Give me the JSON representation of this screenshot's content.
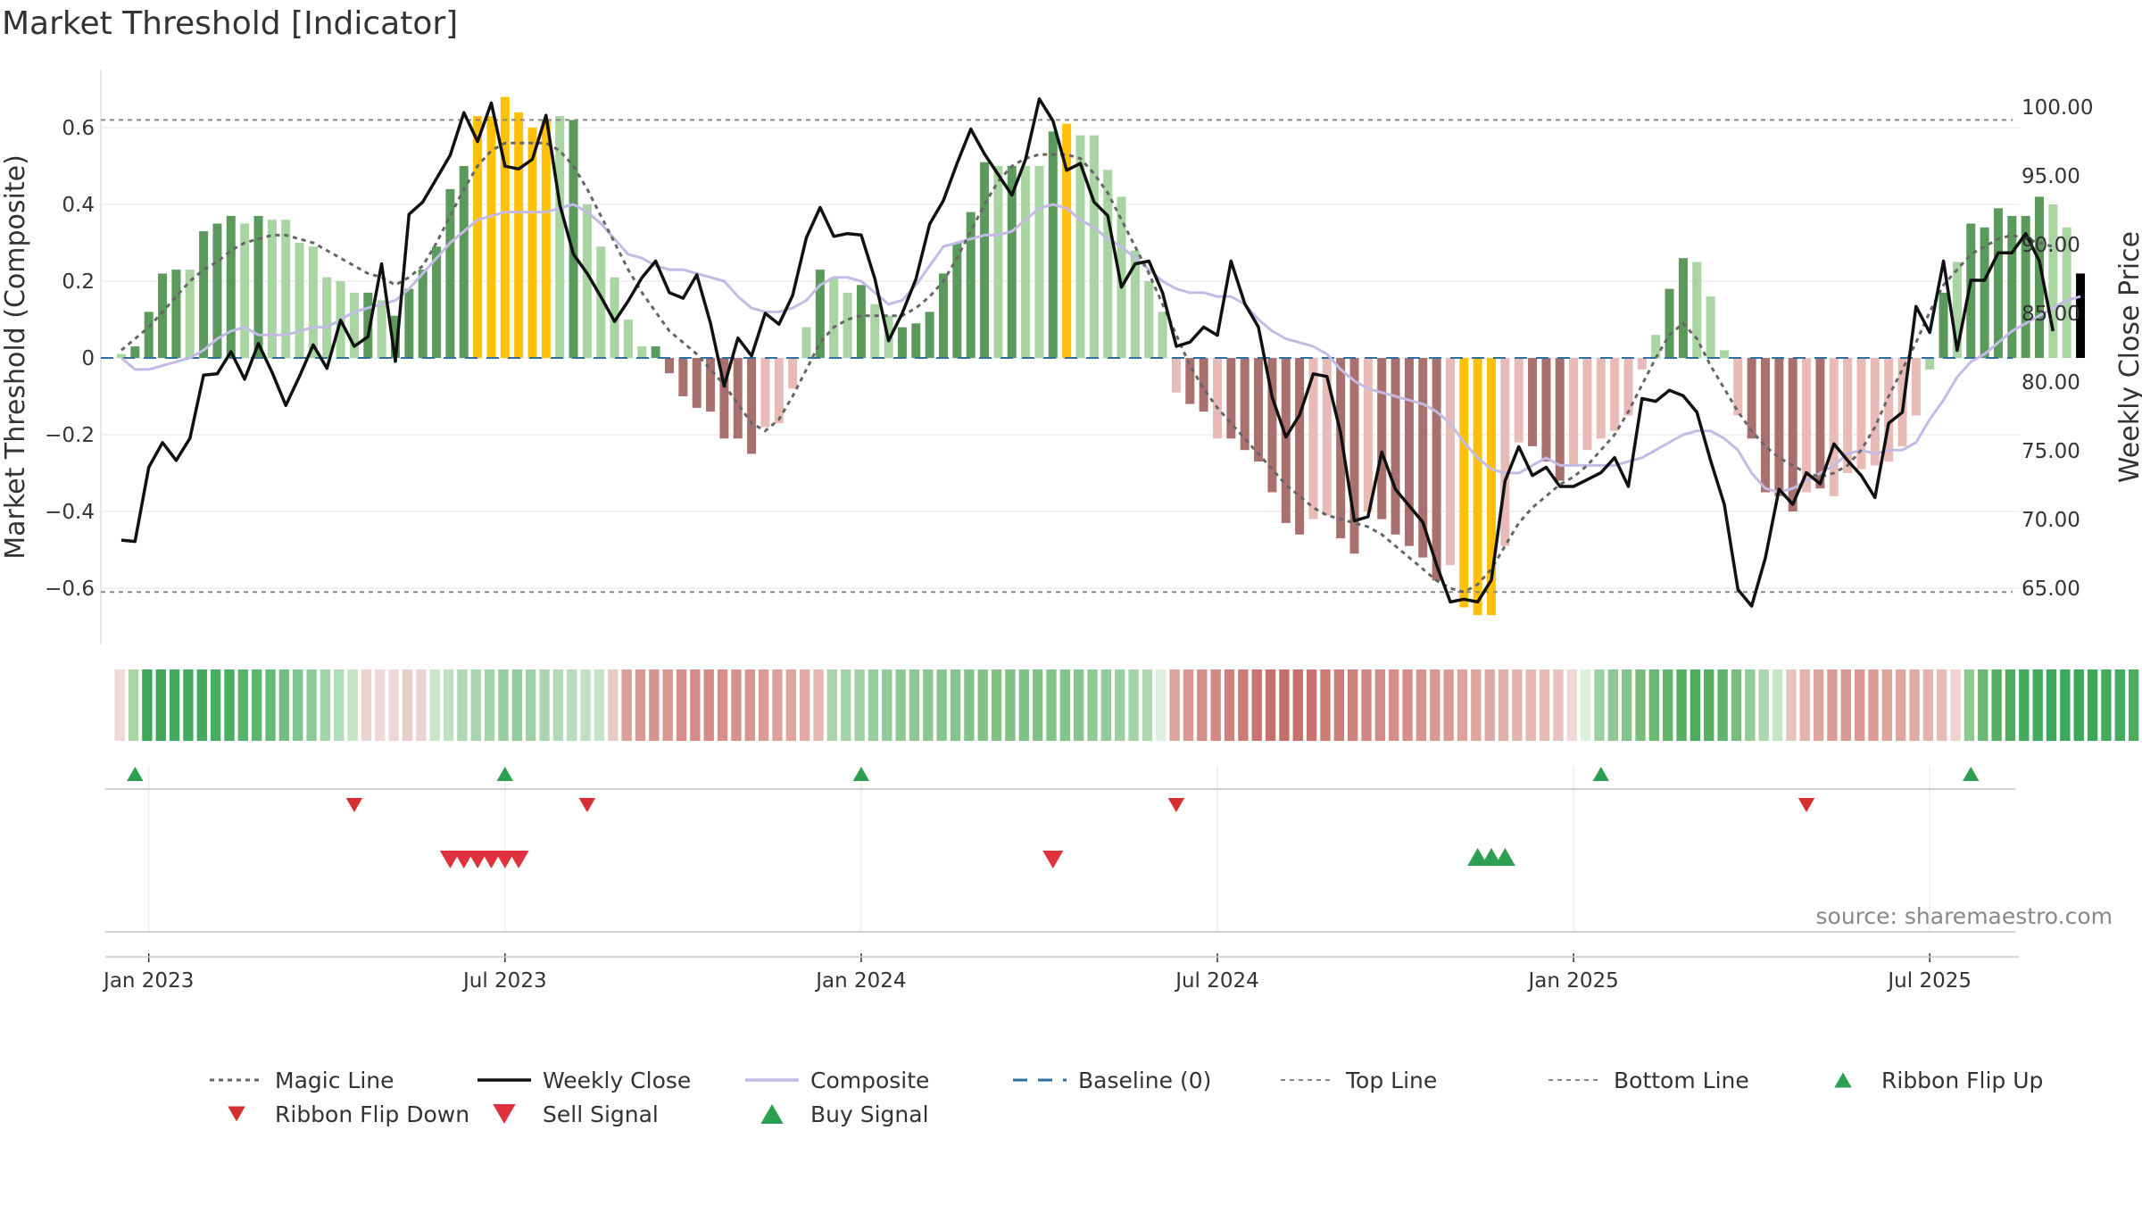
{
  "chart_data": {
    "type": "bar",
    "title": "Market Threshold [Indicator]",
    "ylabel": "Market Threshold (Composite)",
    "ylabel_right": "Weekly Close Price",
    "source": "source: sharemaestro.com",
    "ylim": [
      -0.75,
      0.75
    ],
    "ylim_right": [
      59.5,
      103.2
    ],
    "y_ticks": [
      {
        "v": 0.6,
        "label": "0.6"
      },
      {
        "v": 0.4,
        "label": "0.4"
      },
      {
        "v": 0.2,
        "label": "0.2"
      },
      {
        "v": 0,
        "label": "0"
      },
      {
        "v": -0.2,
        "label": "−0.2"
      },
      {
        "v": -0.4,
        "label": "−0.4"
      },
      {
        "v": -0.6,
        "label": "−0.6"
      }
    ],
    "y2_ticks": [
      {
        "v": 100,
        "label": "100.00"
      },
      {
        "v": 95,
        "label": "95.00"
      },
      {
        "v": 90,
        "label": "90.00"
      },
      {
        "v": 85,
        "label": "85.00"
      },
      {
        "v": 80,
        "label": "80.00"
      },
      {
        "v": 75,
        "label": "75.00"
      },
      {
        "v": 70,
        "label": "70.00"
      },
      {
        "v": 65,
        "label": "65.00"
      }
    ],
    "x_ticks": [
      {
        "i": 2,
        "label": "Jan 2023"
      },
      {
        "i": 28,
        "label": "Jul 2023"
      },
      {
        "i": 54,
        "label": "Jan 2024"
      },
      {
        "i": 80,
        "label": "Jul 2024"
      },
      {
        "i": 106,
        "label": "Jan 2025"
      },
      {
        "i": 132,
        "label": "Jul 2025"
      }
    ],
    "top_line": 0.62,
    "bottom_line": -0.61,
    "composite_values": [
      0.01,
      0.03,
      0.12,
      0.22,
      0.23,
      0.23,
      0.33,
      0.35,
      0.37,
      0.35,
      0.37,
      0.36,
      0.36,
      0.3,
      0.29,
      0.21,
      0.2,
      0.17,
      0.17,
      0.15,
      0.11,
      0.18,
      0.23,
      0.29,
      0.44,
      0.5,
      0.63,
      0.63,
      0.68,
      0.64,
      0.6,
      0.62,
      0.63,
      0.62,
      0.4,
      0.29,
      0.21,
      0.1,
      0.03,
      0.03,
      -0.04,
      -0.1,
      -0.13,
      -0.14,
      -0.21,
      -0.21,
      -0.25,
      -0.18,
      -0.17,
      -0.08,
      0.08,
      0.23,
      0.21,
      0.17,
      0.19,
      0.14,
      0.11,
      0.08,
      0.09,
      0.12,
      0.22,
      0.3,
      0.38,
      0.51,
      0.5,
      0.5,
      0.5,
      0.5,
      0.59,
      0.61,
      0.58,
      0.58,
      0.49,
      0.42,
      0.28,
      0.2,
      0.12,
      -0.09,
      -0.12,
      -0.14,
      -0.21,
      -0.21,
      -0.24,
      -0.27,
      -0.35,
      -0.43,
      -0.46,
      -0.42,
      -0.41,
      -0.47,
      -0.51,
      -0.4,
      -0.42,
      -0.46,
      -0.49,
      -0.52,
      -0.58,
      -0.54,
      -0.65,
      -0.67,
      -0.67,
      -0.49,
      -0.22,
      -0.23,
      -0.27,
      -0.32,
      -0.28,
      -0.24,
      -0.21,
      -0.19,
      -0.15,
      -0.03,
      0.06,
      0.18,
      0.26,
      0.25,
      0.16,
      0.02,
      -0.15,
      -0.21,
      -0.35,
      -0.36,
      -0.4,
      -0.35,
      -0.34,
      -0.36,
      -0.3,
      -0.29,
      -0.28,
      -0.27,
      -0.23,
      -0.15,
      -0.03,
      0.17,
      0.25,
      0.35,
      0.34,
      0.39,
      0.37,
      0.37,
      0.42,
      0.4,
      0.34,
      0.22
    ],
    "composite_colors": [
      "#a8d5a2",
      "#5b9a5b",
      "#5b9a5b",
      "#5b9a5b",
      "#5b9a5b",
      "#a8d5a2",
      "#5b9a5b",
      "#5b9a5b",
      "#5b9a5b",
      "#a8d5a2",
      "#5b9a5b",
      "#a8d5a2",
      "#a8d5a2",
      "#a8d5a2",
      "#a8d5a2",
      "#a8d5a2",
      "#a8d5a2",
      "#a8d5a2",
      "#5b9a5b",
      "#a8d5a2",
      "#5b9a5b",
      "#5b9a5b",
      "#5b9a5b",
      "#5b9a5b",
      "#5b9a5b",
      "#5b9a5b",
      "#ffc107",
      "#ffc107",
      "#ffc107",
      "#ffc107",
      "#ffc107",
      "#ffc107",
      "#a8d5a2",
      "#5b9a5b",
      "#a8d5a2",
      "#a8d5a2",
      "#a8d5a2",
      "#a8d5a2",
      "#a8d5a2",
      "#5b9a5b",
      "#a9716e",
      "#a9716e",
      "#a9716e",
      "#a9716e",
      "#a9716e",
      "#a9716e",
      "#a9716e",
      "#e9bbb6",
      "#e9bbb6",
      "#e9bbb6",
      "#a8d5a2",
      "#5b9a5b",
      "#a8d5a2",
      "#a8d5a2",
      "#5b9a5b",
      "#a8d5a2",
      "#a8d5a2",
      "#5b9a5b",
      "#5b9a5b",
      "#5b9a5b",
      "#5b9a5b",
      "#5b9a5b",
      "#5b9a5b",
      "#5b9a5b",
      "#a8d5a2",
      "#5b9a5b",
      "#a8d5a2",
      "#a8d5a2",
      "#5b9a5b",
      "#ffc107",
      "#a8d5a2",
      "#a8d5a2",
      "#a8d5a2",
      "#a8d5a2",
      "#a8d5a2",
      "#a8d5a2",
      "#a8d5a2",
      "#e9bbb6",
      "#a9716e",
      "#a9716e",
      "#e9bbb6",
      "#a9716e",
      "#a9716e",
      "#a9716e",
      "#a9716e",
      "#a9716e",
      "#a9716e",
      "#e9bbb6",
      "#e9bbb6",
      "#a9716e",
      "#a9716e",
      "#e9bbb6",
      "#a9716e",
      "#a9716e",
      "#a9716e",
      "#a9716e",
      "#a9716e",
      "#e9bbb6",
      "#ffc107",
      "#ffc107",
      "#ffc107",
      "#e9bbb6",
      "#e9bbb6",
      "#a9716e",
      "#a9716e",
      "#a9716e",
      "#e9bbb6",
      "#e9bbb6",
      "#e9bbb6",
      "#e9bbb6",
      "#e9bbb6",
      "#e9bbb6",
      "#a8d5a2",
      "#5b9a5b",
      "#5b9a5b",
      "#a8d5a2",
      "#a8d5a2",
      "#a8d5a2",
      "#e9bbb6",
      "#a9716e",
      "#a9716e",
      "#a9716e",
      "#a9716e",
      "#e9bbb6",
      "#a9716e",
      "#e9bbb6",
      "#e9bbb6",
      "#e9bbb6",
      "#e9bbb6",
      "#e9bbb6",
      "#e9bbb6",
      "#e9bbb6",
      "#a8d5a2",
      "#5b9a5b",
      "#a8d5a2",
      "#5b9a5b",
      "#5b9a5b",
      "#5b9a5b",
      "#5b9a5b",
      "#5b9a5b",
      "#5b9a5b",
      "#a8d5a2",
      "#a8d5a2"
    ],
    "weekly_close": [
      68.5,
      68.4,
      73.8,
      75.6,
      74.3,
      75.9,
      80.5,
      80.6,
      82.2,
      80.2,
      82.8,
      80.7,
      78.3,
      80.4,
      82.7,
      81.0,
      84.5,
      82.6,
      83.3,
      88.6,
      81.5,
      92.2,
      93.1,
      94.8,
      96.5,
      99.6,
      97.5,
      100.3,
      95.7,
      95.5,
      96.2,
      99.4,
      92.9,
      89.3,
      87.9,
      86.2,
      84.4,
      85.9,
      87.6,
      88.8,
      86.5,
      86.1,
      87.8,
      84.3,
      79.7,
      83.2,
      81.9,
      85.0,
      84.2,
      86.3,
      90.5,
      92.7,
      90.6,
      90.8,
      90.7,
      87.5,
      83.0,
      85.0,
      87.5,
      91.5,
      93.2,
      95.9,
      98.4,
      96.6,
      95.1,
      93.6,
      96.2,
      100.6,
      99.0,
      95.4,
      95.9,
      93.1,
      92.1,
      86.9,
      88.6,
      88.8,
      86.5,
      82.6,
      82.9,
      84.0,
      83.4,
      88.8,
      85.7,
      84.0,
      78.9,
      76.0,
      77.6,
      80.6,
      80.4,
      76.3,
      69.9,
      70.2,
      74.9,
      72.2,
      71.0,
      69.8,
      66.7,
      64.0,
      64.2,
      64.0,
      65.6,
      72.8,
      75.3,
      73.2,
      73.8,
      72.4,
      72.4,
      72.9,
      73.4,
      74.5,
      72.4,
      78.8,
      78.6,
      79.4,
      79.0,
      77.8,
      74.3,
      71.1,
      64.9,
      63.7,
      67.2,
      72.2,
      71.1,
      73.4,
      72.6,
      75.5,
      74.3,
      73.2,
      71.6,
      77.0,
      77.8,
      85.5,
      83.6,
      88.8,
      82.3,
      87.4,
      87.4,
      89.4,
      89.4,
      90.8,
      88.8,
      83.7
    ],
    "composite_line": [
      0,
      -0.03,
      -0.03,
      -0.02,
      -0.01,
      0,
      0.02,
      0.05,
      0.07,
      0.08,
      0.06,
      0.06,
      0.06,
      0.07,
      0.08,
      0.08,
      0.1,
      0.12,
      0.13,
      0.14,
      0.15,
      0.18,
      0.22,
      0.26,
      0.3,
      0.33,
      0.36,
      0.37,
      0.38,
      0.38,
      0.38,
      0.38,
      0.39,
      0.4,
      0.38,
      0.35,
      0.31,
      0.27,
      0.26,
      0.24,
      0.23,
      0.23,
      0.22,
      0.21,
      0.2,
      0.16,
      0.13,
      0.12,
      0.12,
      0.13,
      0.15,
      0.19,
      0.21,
      0.21,
      0.2,
      0.17,
      0.14,
      0.15,
      0.19,
      0.24,
      0.29,
      0.3,
      0.31,
      0.32,
      0.32,
      0.33,
      0.36,
      0.39,
      0.4,
      0.39,
      0.36,
      0.34,
      0.31,
      0.29,
      0.26,
      0.23,
      0.2,
      0.18,
      0.17,
      0.17,
      0.16,
      0.16,
      0.14,
      0.1,
      0.07,
      0.05,
      0.04,
      0.03,
      0.01,
      -0.03,
      -0.06,
      -0.08,
      -0.09,
      -0.1,
      -0.11,
      -0.12,
      -0.14,
      -0.17,
      -0.22,
      -0.26,
      -0.29,
      -0.3,
      -0.3,
      -0.28,
      -0.26,
      -0.28,
      -0.28,
      -0.28,
      -0.28,
      -0.28,
      -0.27,
      -0.26,
      -0.24,
      -0.22,
      -0.2,
      -0.19,
      -0.19,
      -0.21,
      -0.24,
      -0.3,
      -0.34,
      -0.35,
      -0.34,
      -0.32,
      -0.3,
      -0.28,
      -0.25,
      -0.24,
      -0.25,
      -0.24,
      -0.24,
      -0.22,
      -0.16,
      -0.11,
      -0.05,
      -0.01,
      0.01,
      0.04,
      0.07,
      0.09,
      0.11,
      0.13,
      0.15,
      0.16
    ],
    "magic_line": [
      0.02,
      0.05,
      0.08,
      0.12,
      0.16,
      0.2,
      0.23,
      0.25,
      0.28,
      0.3,
      0.31,
      0.32,
      0.32,
      0.31,
      0.3,
      0.28,
      0.26,
      0.24,
      0.22,
      0.21,
      0.19,
      0.21,
      0.24,
      0.3,
      0.37,
      0.44,
      0.5,
      0.54,
      0.56,
      0.56,
      0.56,
      0.56,
      0.54,
      0.5,
      0.44,
      0.37,
      0.3,
      0.23,
      0.17,
      0.12,
      0.07,
      0.04,
      0.01,
      -0.03,
      -0.07,
      -0.12,
      -0.17,
      -0.19,
      -0.16,
      -0.1,
      -0.03,
      0.04,
      0.08,
      0.1,
      0.11,
      0.11,
      0.11,
      0.11,
      0.13,
      0.16,
      0.2,
      0.26,
      0.33,
      0.4,
      0.46,
      0.5,
      0.52,
      0.53,
      0.53,
      0.53,
      0.52,
      0.48,
      0.43,
      0.36,
      0.29,
      0.22,
      0.14,
      0.06,
      -0.02,
      -0.08,
      -0.13,
      -0.17,
      -0.21,
      -0.25,
      -0.29,
      -0.33,
      -0.36,
      -0.39,
      -0.41,
      -0.42,
      -0.43,
      -0.44,
      -0.46,
      -0.49,
      -0.52,
      -0.55,
      -0.58,
      -0.6,
      -0.61,
      -0.59,
      -0.55,
      -0.49,
      -0.43,
      -0.39,
      -0.36,
      -0.33,
      -0.31,
      -0.28,
      -0.24,
      -0.2,
      -0.14,
      -0.07,
      0,
      0.06,
      0.09,
      0.05,
      -0.02,
      -0.08,
      -0.14,
      -0.19,
      -0.23,
      -0.26,
      -0.28,
      -0.3,
      -0.31,
      -0.3,
      -0.28,
      -0.24,
      -0.18,
      -0.1,
      -0.03,
      0.04,
      0.12,
      0.19,
      0.23,
      0.27,
      0.29,
      0.31,
      0.32,
      0.31,
      0.3,
      0.29
    ],
    "ribbon_colors": [
      "#f0d9d6",
      "#a8d5a2",
      "#3da85a",
      "#3da85a",
      "#44aa5e",
      "#44aa5e",
      "#44aa5e",
      "#49ad62",
      "#49ad62",
      "#55b26a",
      "#5cb46f",
      "#66b977",
      "#73bf82",
      "#80c58d",
      "#8dca98",
      "#a3d5ab",
      "#b1dcb8",
      "#c4e4c8",
      "#ead3d0",
      "#ecd9d6",
      "#ecd9d6",
      "#e8cfcb",
      "#ead3d0",
      "#c8e5cb",
      "#bfe1c3",
      "#afd9b5",
      "#a7d6ae",
      "#a3d4aa",
      "#96ce9e",
      "#94cd9c",
      "#9ed1a5",
      "#a9d6b0",
      "#b0d9b6",
      "#b8ddbe",
      "#bfe0c5",
      "#c6e3cb",
      "#e8c9c5",
      "#dc9e98",
      "#d99893",
      "#d7938d",
      "#d9988f",
      "#d58e88",
      "#d48b85",
      "#d58c86",
      "#d69089",
      "#d6928c",
      "#d89690",
      "#da9b95",
      "#dda29c",
      "#dea59f",
      "#e1aca6",
      "#e5b8b3",
      "#a8d5ab",
      "#a3d3a7",
      "#9fd1a3",
      "#99ce9e",
      "#93cb98",
      "#8ec993",
      "#8dc892",
      "#8bc790",
      "#89c68e",
      "#87c58c",
      "#84c48a",
      "#82c388",
      "#80c286",
      "#80c286",
      "#80c286",
      "#80c286",
      "#82c388",
      "#85c48b",
      "#88c58e",
      "#8ec993",
      "#94cc99",
      "#9bcf9f",
      "#a3d3a7",
      "#b0d9b3",
      "#ddf0de",
      "#dda39d",
      "#d99892",
      "#d58f89",
      "#d38883",
      "#cf817b",
      "#cc7a74",
      "#c97470",
      "#c8716c",
      "#c66e69",
      "#c8716c",
      "#c97470",
      "#cc7b75",
      "#cd7e78",
      "#cf817b",
      "#d28782",
      "#d48b85",
      "#d58f89",
      "#d69089",
      "#d8948e",
      "#d99892",
      "#da9b95",
      "#dda29c",
      "#dea59f",
      "#e0aaa4",
      "#e2afa9",
      "#e3b3ae",
      "#e5b7b2",
      "#e7bcb7",
      "#e9c1bc",
      "#efd9d6",
      "#ddefdd",
      "#9cd0a1",
      "#8ec993",
      "#82c388",
      "#77be7e",
      "#6cb975",
      "#61b46c",
      "#56b064",
      "#4cab5c",
      "#55af63",
      "#61b46c",
      "#77be7e",
      "#91cb96",
      "#abd7ae",
      "#c6e4c8",
      "#e8c4bf",
      "#e3b3ae",
      "#dea59f",
      "#da9b95",
      "#d99892",
      "#d99892",
      "#da9b95",
      "#dda29c",
      "#dea59f",
      "#e1aca6",
      "#e3b3ae",
      "#e7bcb7",
      "#edd2cf",
      "#8ec993",
      "#6cb975",
      "#56b064",
      "#4cab5c",
      "#44aa5e",
      "#44aa5e",
      "#3da85a",
      "#3da85a",
      "#3da85a",
      "#3da85a",
      "#44aa5e",
      "#44aa5e",
      "#4cab5c",
      "#56b064"
    ],
    "ribbon_flip_up": [
      1,
      28,
      54,
      108,
      135
    ],
    "ribbon_flip_down": [
      17,
      34,
      77,
      123
    ],
    "sell_signal": [
      24,
      25,
      26,
      27,
      28,
      29,
      68
    ],
    "buy_signal": [
      99,
      100,
      101
    ],
    "legend": [
      {
        "label": "Magic Line",
        "key": "magic"
      },
      {
        "label": "Weekly Close",
        "key": "close"
      },
      {
        "label": "Composite",
        "key": "composite"
      },
      {
        "label": "Baseline (0)",
        "key": "baseline"
      },
      {
        "label": "Top Line",
        "key": "top"
      },
      {
        "label": "Bottom Line",
        "key": "bottom"
      },
      {
        "label": "Ribbon Flip Up",
        "key": "flipup"
      },
      {
        "label": "Ribbon Flip Down",
        "key": "flipdown"
      },
      {
        "label": "Sell Signal",
        "key": "sell"
      },
      {
        "label": "Buy Signal",
        "key": "buy"
      }
    ],
    "colors": {
      "close": "#111111",
      "magic": "#666666",
      "composite_line": "#c3bbe6",
      "baseline": "#2e6f9e",
      "threshold": "#888888",
      "flip_up": "#2ca050",
      "flip_down": "#d62f2f",
      "sell": "#e0323c",
      "buy": "#2ca050",
      "grid": "#e6e6e6"
    }
  }
}
